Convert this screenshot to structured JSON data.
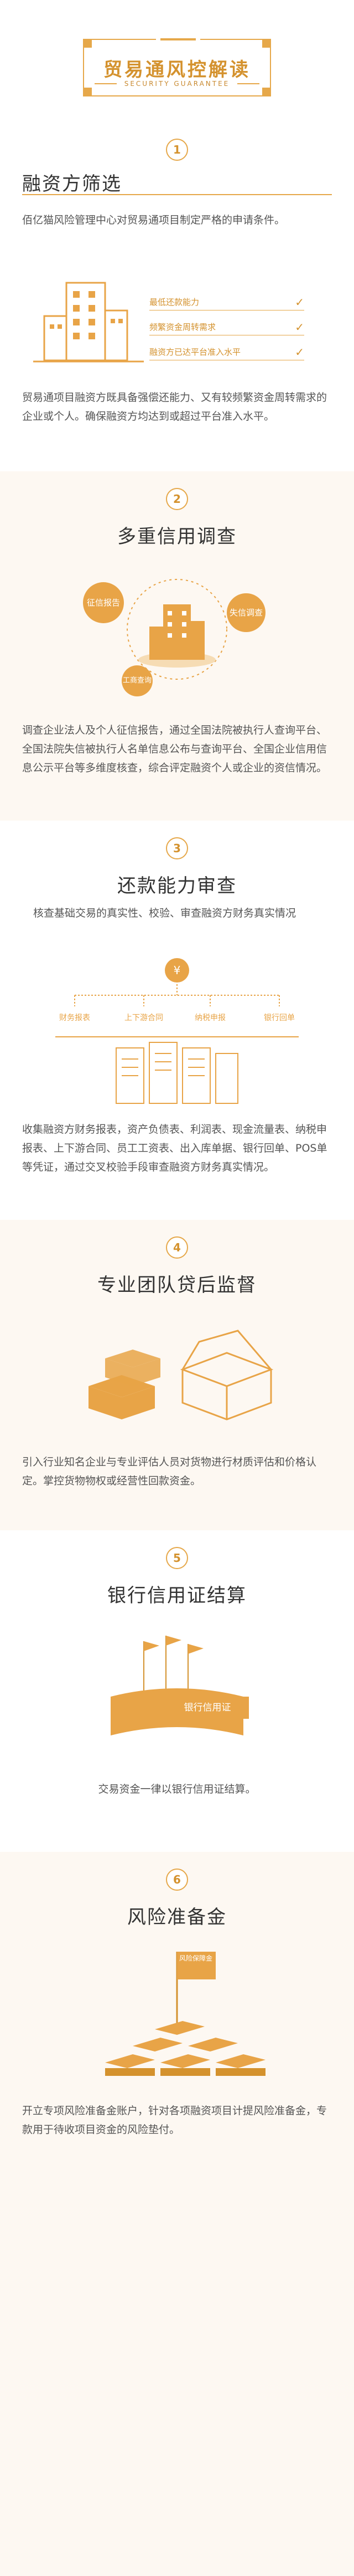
{
  "header": {
    "title": "贸易通风控解读",
    "subtitle": "SECURITY GUARANTEE"
  },
  "sections": [
    {
      "num": "1",
      "title": "融资方筛选",
      "intro": "佰亿猫风险管理中心对贸易通项目制定严格的申请条件。",
      "checks": [
        "最低还款能力",
        "频繁资金周转需求",
        "融资方已达平台准入水平"
      ],
      "body": "贸易通项目融资方既具备强偿还能力、又有较频繁资金周转需求的企业或个人。确保融资方均达到或超过平台准入水平。"
    },
    {
      "num": "2",
      "title": "多重信用调查",
      "bubbles": [
        "征信报告",
        "失信调查",
        "工商查询"
      ],
      "body": "调查企业法人及个人征信报告，通过全国法院被执行人查询平台、全国法院失信被执行人名单信息公布与查询平台、全国企业信用信息公示平台等多维度核查，综合评定融资个人或企业的资信情况。"
    },
    {
      "num": "3",
      "title": "还款能力审查",
      "intro": "核查基础交易的真实性、校验、审查融资方财务真实情况",
      "flow_labels": [
        "财务报表",
        "上下游合同",
        "纳税申报",
        "银行回单"
      ],
      "body": "收集融资方财务报表，资产负债表、利润表、现金流量表、纳税申报表、上下游合同、员工工资表、出入库单据、银行回单、POS单等凭证，通过交叉校验手段审查融资方财务真实情况。"
    },
    {
      "num": "4",
      "title": "专业团队贷后监督",
      "body": "引入行业知名企业与专业评估人员对货物进行材质评估和价格认定。掌控货物物权或经营性回款资金。"
    },
    {
      "num": "5",
      "title": "银行信用证结算",
      "banner": "银行信用证",
      "body": "交易资金一律以银行信用证结算。"
    },
    {
      "num": "6",
      "title": "风险准备金",
      "flag": "风险保障金",
      "body": "开立专项风险准备金账户，针对各项融资项目计提风险准备金，专款用于待收项目资金的风险垫付。"
    }
  ],
  "colors": {
    "accent": "#e8a447",
    "accent_dark": "#d4922e",
    "bg_alt": "#fdf8f2"
  }
}
